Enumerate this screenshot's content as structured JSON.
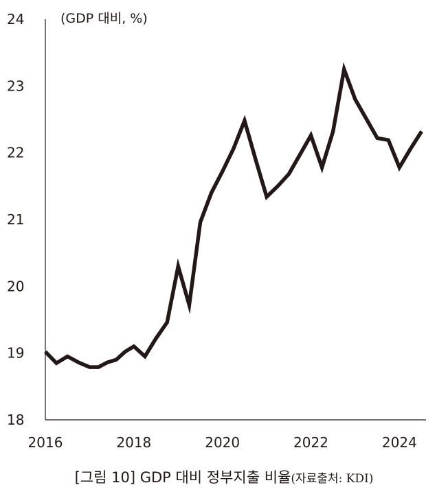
{
  "chart_data": {
    "type": "line",
    "unit_label": "(GDP 대비, %)",
    "ylim": [
      18,
      24
    ],
    "yticks": [
      "18",
      "19",
      "20",
      "21",
      "22",
      "23",
      "24"
    ],
    "xlim": [
      2016,
      2024.6
    ],
    "xticks": [
      "2016",
      "2018",
      "2020",
      "2022",
      "2024"
    ],
    "grid": false,
    "line_color": "#231815",
    "series": [
      {
        "x": [
          2016.0,
          2016.25,
          2016.5,
          2016.75,
          2017.0,
          2017.2,
          2017.4,
          2017.6,
          2017.8,
          2018.0,
          2018.25,
          2018.5,
          2018.75,
          2019.0,
          2019.25,
          2019.5,
          2019.75,
          2020.0,
          2020.25,
          2020.5,
          2020.75,
          2021.0,
          2021.25,
          2021.5,
          2021.75,
          2022.0,
          2022.25,
          2022.5,
          2022.75,
          2023.0,
          2023.25,
          2023.5,
          2023.75,
          2024.0,
          2024.25,
          2024.5
        ],
        "values": [
          19.02,
          18.85,
          18.95,
          18.86,
          18.79,
          18.79,
          18.86,
          18.9,
          19.02,
          19.1,
          18.95,
          19.22,
          19.46,
          20.3,
          19.72,
          20.96,
          21.4,
          21.72,
          22.06,
          22.48,
          21.9,
          21.34,
          21.5,
          21.68,
          21.97,
          22.26,
          21.78,
          22.32,
          23.25,
          22.8,
          22.51,
          22.22,
          22.19,
          21.78,
          22.06,
          22.32
        ]
      }
    ]
  },
  "caption": {
    "main": "[그림 10] GDP 대비 정부지출 비율",
    "source": "(자료출처: KDI)"
  }
}
